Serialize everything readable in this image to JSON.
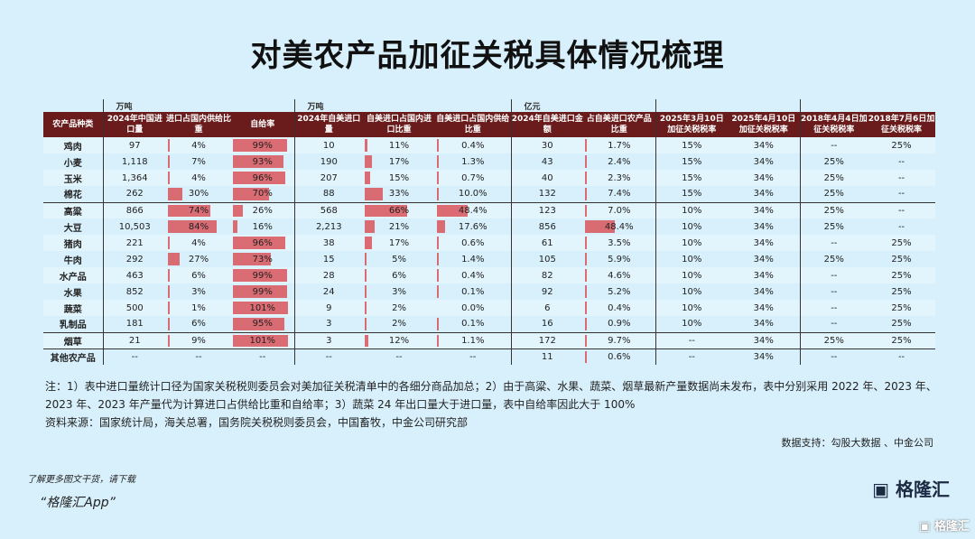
{
  "title": "对美农产品加征关税具体情况梳理",
  "units": {
    "u1": "万吨",
    "u2": "万吨",
    "u3": "亿元"
  },
  "headers": [
    "农产品种类",
    "2024年中国进口量",
    "进口占国内供给比重",
    "自给率",
    "2024年自美进口量",
    "自美进口占国内进口比重",
    "自美进口占国内供给比重",
    "2024年自美进口金额",
    "占自美进口农产品比重",
    "2025年3月10日加征关税税率",
    "2025年4月10日加征关税税率",
    "2018年4月4日加征关税税率",
    "2018年7月6日加征关税税率"
  ],
  "bar_color": "#d9535a",
  "header_color": "#6a1b1b",
  "rows": [
    [
      "鸡肉",
      "97",
      "4%",
      "99%",
      "10",
      "11%",
      "0.4%",
      "30",
      "1.7%",
      "15%",
      "34%",
      "--",
      "25%"
    ],
    [
      "小麦",
      "1,118",
      "7%",
      "93%",
      "190",
      "17%",
      "1.3%",
      "43",
      "2.4%",
      "15%",
      "34%",
      "25%",
      "--"
    ],
    [
      "玉米",
      "1,364",
      "4%",
      "96%",
      "207",
      "15%",
      "0.7%",
      "40",
      "2.3%",
      "15%",
      "34%",
      "25%",
      "--"
    ],
    [
      "棉花",
      "262",
      "30%",
      "70%",
      "88",
      "33%",
      "10.0%",
      "132",
      "7.4%",
      "15%",
      "34%",
      "25%",
      "--"
    ],
    [
      "高粱",
      "866",
      "74%",
      "26%",
      "568",
      "66%",
      "48.4%",
      "123",
      "7.0%",
      "10%",
      "34%",
      "25%",
      "--"
    ],
    [
      "大豆",
      "10,503",
      "84%",
      "16%",
      "2,213",
      "21%",
      "17.6%",
      "856",
      "48.4%",
      "10%",
      "34%",
      "25%",
      "--"
    ],
    [
      "猪肉",
      "221",
      "4%",
      "96%",
      "38",
      "17%",
      "0.6%",
      "61",
      "3.5%",
      "10%",
      "34%",
      "--",
      "25%"
    ],
    [
      "牛肉",
      "292",
      "27%",
      "73%",
      "15",
      "5%",
      "1.4%",
      "105",
      "5.9%",
      "10%",
      "34%",
      "25%",
      "25%"
    ],
    [
      "水产品",
      "463",
      "6%",
      "99%",
      "28",
      "6%",
      "0.4%",
      "82",
      "4.6%",
      "10%",
      "34%",
      "--",
      "25%"
    ],
    [
      "水果",
      "852",
      "3%",
      "99%",
      "24",
      "3%",
      "0.1%",
      "92",
      "5.2%",
      "10%",
      "34%",
      "--",
      "25%"
    ],
    [
      "蔬菜",
      "500",
      "1%",
      "101%",
      "9",
      "2%",
      "0.0%",
      "6",
      "0.4%",
      "10%",
      "34%",
      "--",
      "25%"
    ],
    [
      "乳制品",
      "181",
      "6%",
      "95%",
      "3",
      "2%",
      "0.1%",
      "16",
      "0.9%",
      "10%",
      "34%",
      "--",
      "25%"
    ],
    [
      "烟草",
      "21",
      "9%",
      "101%",
      "3",
      "12%",
      "1.1%",
      "172",
      "9.7%",
      "--",
      "34%",
      "25%",
      "25%"
    ],
    [
      "其他农产品",
      "--",
      "--",
      "--",
      "--",
      "--",
      "--",
      "11",
      "0.6%",
      "--",
      "34%",
      "--",
      "--"
    ]
  ],
  "notes": {
    "line1": "注：1）表中进口量统计口径为国家关税税则委员会对美加征关税清单中的各细分商品加总；2）由于高粱、水果、蔬菜、烟草最新产量数据尚未发布，表中分别采用 2022 年、2023 年、2023 年、2023 年产量代为计算进口占供给比重和自给率；3）蔬菜 24 年出口量大于进口量，表中自给率因此大于 100%",
    "source": "资料来源：国家统计局，海关总署，国务院关税税则委员会，中国畜牧，中金公司研究部",
    "support": "数据支持：勾股大数据 、中金公司"
  },
  "footer": {
    "promo1": "了解更多图文干货，请下载",
    "promo2": "“格隆汇App”",
    "logo": "格隆汇",
    "logo2": "格隆汇"
  }
}
